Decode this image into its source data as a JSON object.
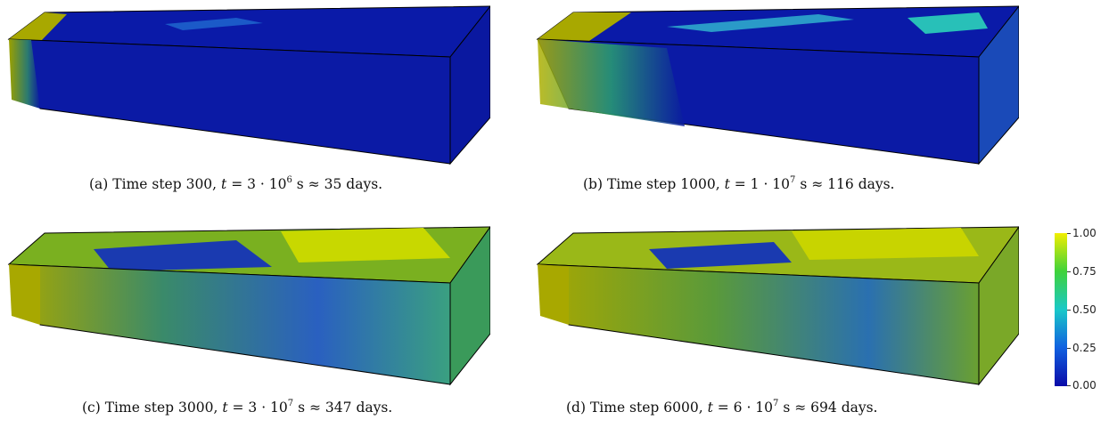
{
  "panels": [
    {
      "label": "(a)",
      "step_text": "Time step 300,",
      "t_mantissa": "3",
      "t_exp": "6",
      "approx": "35",
      "unit": "days.",
      "fill_level": 0.12
    },
    {
      "label": "(b)",
      "step_text": "Time step 1000,",
      "t_mantissa": "1",
      "t_exp": "7",
      "approx": "116",
      "unit": "days.",
      "fill_level": 0.3
    },
    {
      "label": "(c)",
      "step_text": "Time step 3000,",
      "t_mantissa": "3",
      "t_exp": "7",
      "approx": "347",
      "unit": "days.",
      "fill_level": 0.7
    },
    {
      "label": "(d)",
      "step_text": "Time step 6000,",
      "t_mantissa": "6",
      "t_exp": "7",
      "approx": "694",
      "unit": "days.",
      "fill_level": 0.85
    }
  ],
  "colorbar": {
    "ticks": [
      "1.00",
      "0.75",
      "0.50",
      "0.25",
      "0.00"
    ],
    "colors": [
      "#f2ee00",
      "#3fd23a",
      "#19c8c8",
      "#1060e0",
      "#0a0aa8"
    ]
  },
  "symbols": {
    "t": "t",
    "eq": " = ",
    "dot": " · 10",
    "s": " s ≈ "
  }
}
